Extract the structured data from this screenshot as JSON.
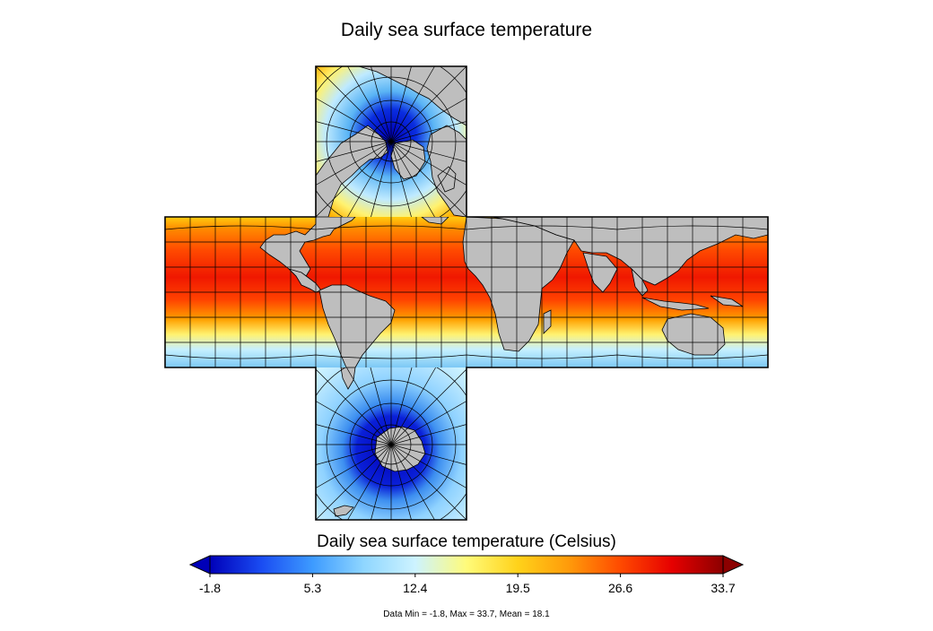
{
  "title": "Daily sea surface temperature",
  "colorbar": {
    "label": "Daily sea surface temperature (Celsius)",
    "ticks": [
      "-1.8",
      "5.3",
      "12.4",
      "19.5",
      "26.6",
      "33.7"
    ],
    "min": -1.8,
    "max": 33.7,
    "colors": [
      "#0000b8",
      "#1a4cf2",
      "#3d9bff",
      "#8fd6ff",
      "#cdf3ff",
      "#fffb7a",
      "#ffd21a",
      "#ff9a0a",
      "#ff4a00",
      "#e60000",
      "#8c0000"
    ],
    "extend": "both"
  },
  "stats": "Data Min = -1.8, Max = 33.7, Mean = 18.1",
  "colors": {
    "land": "#bebebe",
    "grid": "#000000",
    "arrow_low": "#0000b8",
    "arrow_high": "#8c0000"
  }
}
